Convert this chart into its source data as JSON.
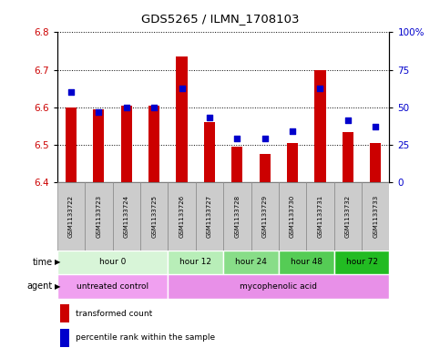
{
  "title": "GDS5265 / ILMN_1708103",
  "samples": [
    "GSM1133722",
    "GSM1133723",
    "GSM1133724",
    "GSM1133725",
    "GSM1133726",
    "GSM1133727",
    "GSM1133728",
    "GSM1133729",
    "GSM1133730",
    "GSM1133731",
    "GSM1133732",
    "GSM1133733"
  ],
  "red_values": [
    6.6,
    6.595,
    6.605,
    6.605,
    6.735,
    6.56,
    6.495,
    6.475,
    6.505,
    6.7,
    6.535,
    6.505
  ],
  "blue_values": [
    0.6,
    0.47,
    0.5,
    0.5,
    0.625,
    0.43,
    0.295,
    0.295,
    0.34,
    0.625,
    0.415,
    0.375
  ],
  "ylim_left": [
    6.4,
    6.8
  ],
  "ylim_right": [
    0.0,
    1.0
  ],
  "yticks_left": [
    6.4,
    6.5,
    6.6,
    6.7,
    6.8
  ],
  "ytick_labels_right": [
    "0",
    "25",
    "50",
    "75",
    "100%"
  ],
  "ytick_labels_right_vals": [
    0.0,
    0.25,
    0.5,
    0.75,
    1.0
  ],
  "time_groups": [
    {
      "label": "hour 0",
      "start": 0,
      "end": 4,
      "color": "#d8f5d8"
    },
    {
      "label": "hour 12",
      "start": 4,
      "end": 6,
      "color": "#b8eeb8"
    },
    {
      "label": "hour 24",
      "start": 6,
      "end": 8,
      "color": "#88dd88"
    },
    {
      "label": "hour 48",
      "start": 8,
      "end": 10,
      "color": "#55cc55"
    },
    {
      "label": "hour 72",
      "start": 10,
      "end": 12,
      "color": "#22bb22"
    }
  ],
  "agent_groups": [
    {
      "label": "untreated control",
      "start": 0,
      "end": 4,
      "color": "#f0a0f0"
    },
    {
      "label": "mycophenolic acid",
      "start": 4,
      "end": 12,
      "color": "#e890e8"
    }
  ],
  "bar_bottom": 6.4,
  "bar_color": "#cc0000",
  "dot_color": "#0000cc",
  "bg_color": "#ffffff",
  "legend_red_label": "transformed count",
  "legend_blue_label": "percentile rank within the sample",
  "sample_box_color": "#cccccc",
  "sample_box_edge": "#888888"
}
